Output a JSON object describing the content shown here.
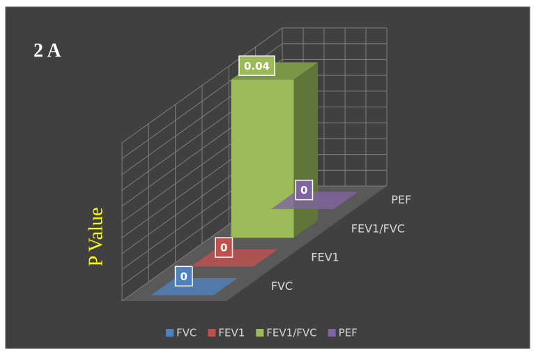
{
  "chart_data": {
    "type": "bar",
    "title": "2 A",
    "y_label": "P Value",
    "categories": [
      "FVC",
      "FEV1",
      "FEV1/FVC",
      "PEF"
    ],
    "values": [
      0,
      0,
      0.04,
      0
    ],
    "colors": [
      "#4f81bd",
      "#c0504d",
      "#9bbb59",
      "#8064a2"
    ],
    "ylim": [
      0,
      0.04
    ],
    "grid": true
  }
}
